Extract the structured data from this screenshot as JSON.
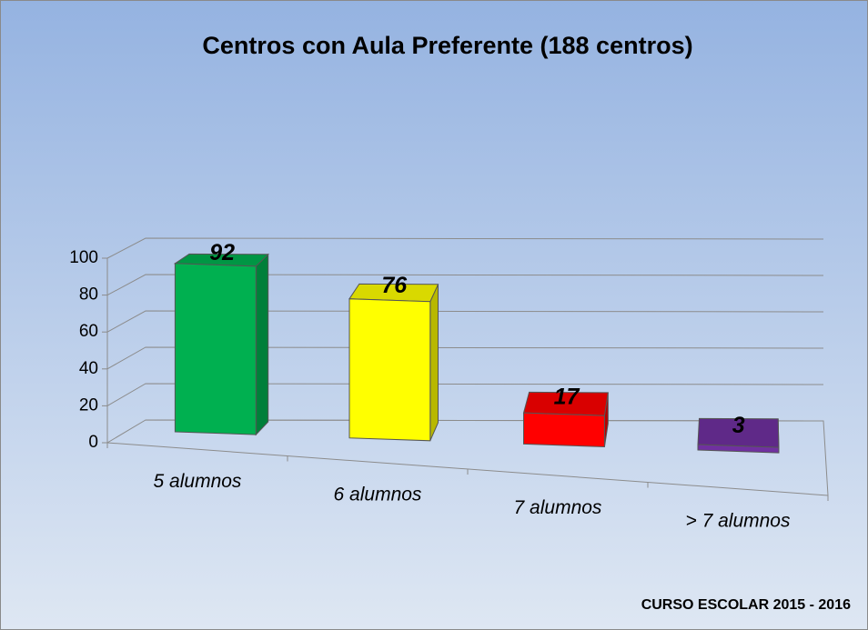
{
  "chart_data": {
    "type": "bar3d",
    "title": "Centros con Aula Preferente (188 centros)",
    "categories": [
      "5 alumnos",
      "6 alumnos",
      "7 alumnos",
      "> 7 alumnos"
    ],
    "values": [
      92,
      76,
      17,
      3
    ],
    "colors": [
      "#00b050",
      "#ffff00",
      "#ff0000",
      "#7030a0"
    ],
    "ylim": [
      0,
      100
    ],
    "yticks": [
      0,
      20,
      40,
      60,
      80,
      100
    ],
    "grid": true,
    "footnote": "CURSO ESCOLAR 2015 - 2016"
  }
}
